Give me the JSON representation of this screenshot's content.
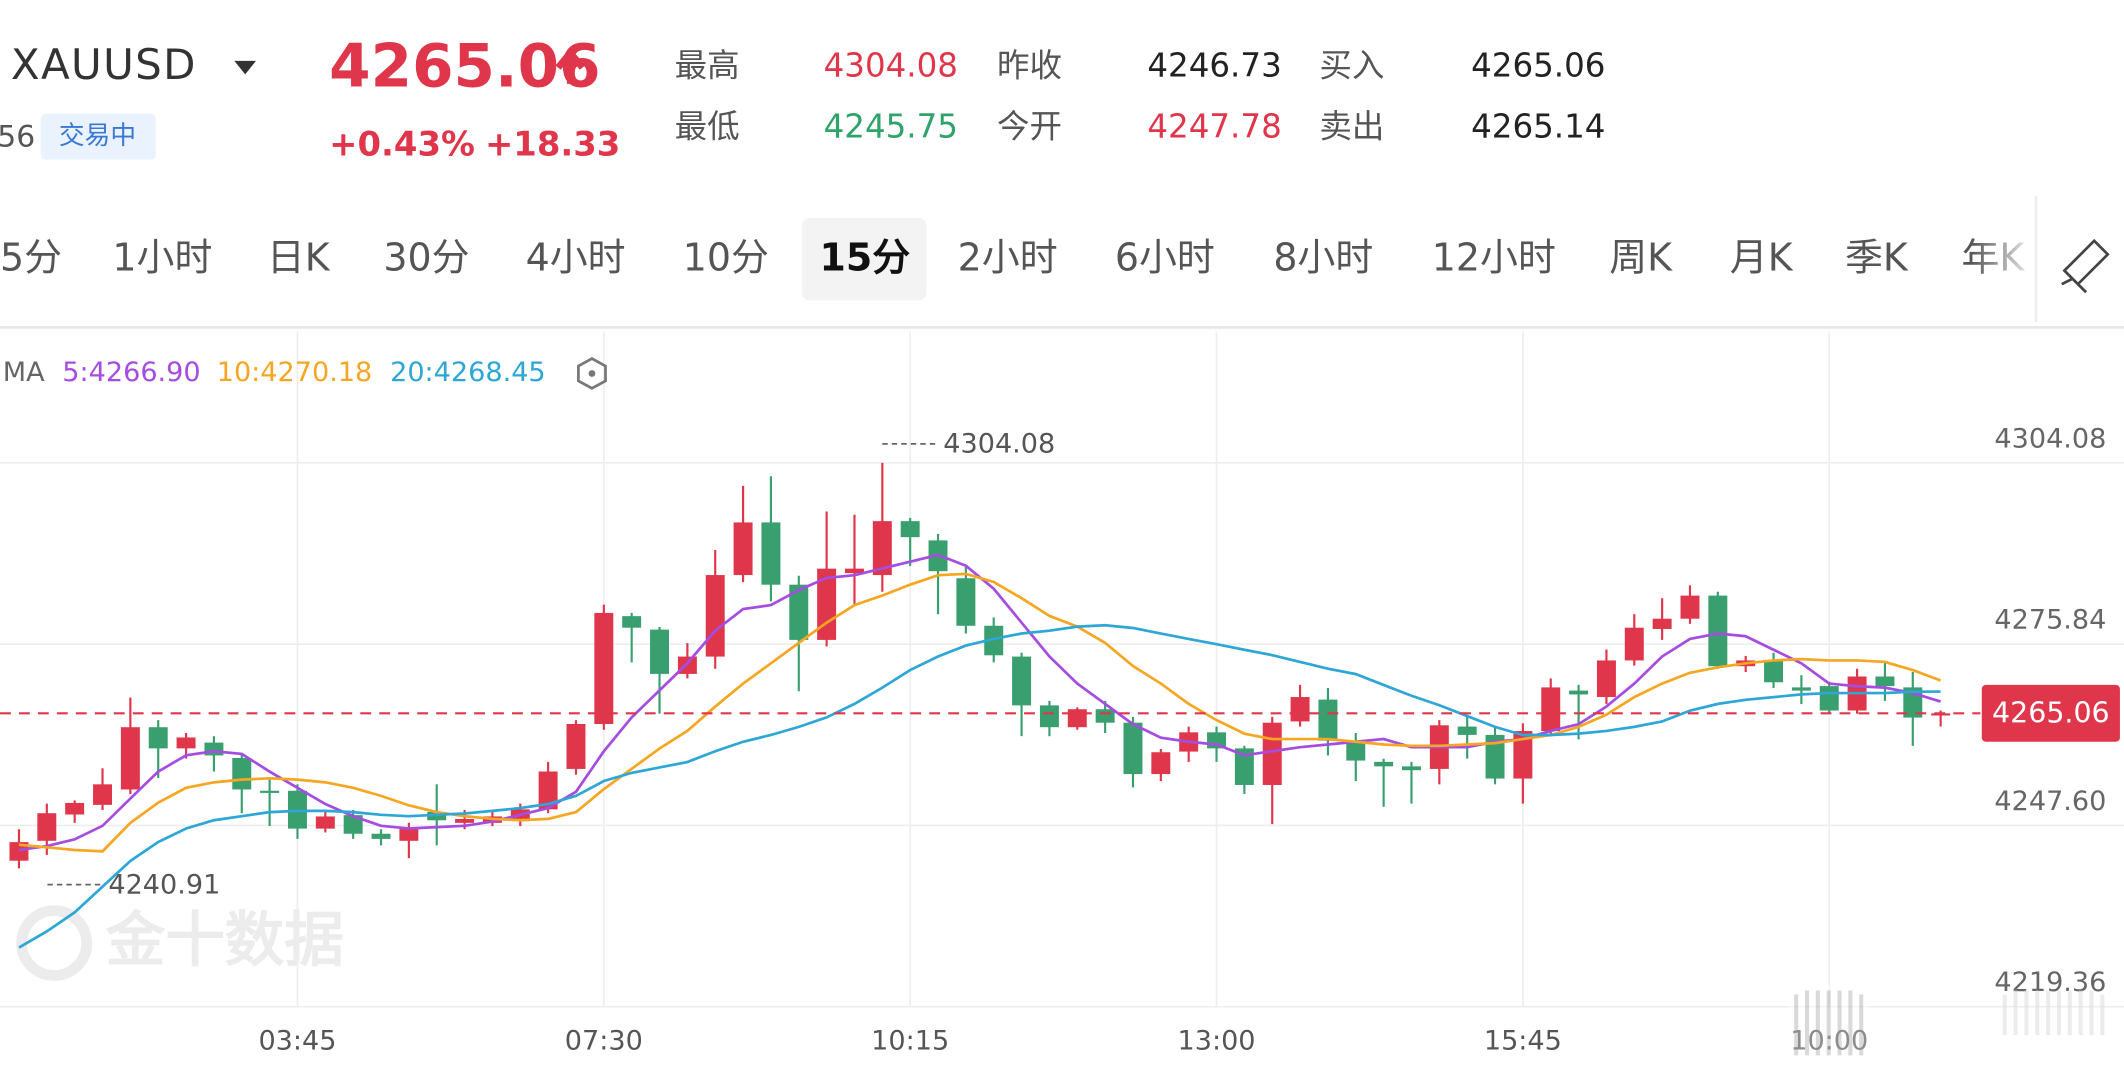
{
  "header": {
    "symbol": "XAUUSD",
    "time_fragment": "56",
    "status": "交易中",
    "price": "4265.06",
    "change_pct": "+0.43%",
    "change": "+18.33",
    "stats": [
      {
        "label": "最高",
        "value": "4304.08",
        "color": "#e0364b"
      },
      {
        "label": "最低",
        "value": "4245.75",
        "color": "#2fa36b"
      },
      {
        "label": "昨收",
        "value": "4246.73",
        "color": "#222222"
      },
      {
        "label": "今开",
        "value": "4247.78",
        "color": "#e0364b"
      },
      {
        "label": "买入",
        "value": "4265.06",
        "color": "#222222"
      },
      {
        "label": "卖出",
        "value": "4265.14",
        "color": "#222222"
      }
    ]
  },
  "tabs": [
    {
      "label": "5分",
      "active": false
    },
    {
      "label": "1小时",
      "active": false
    },
    {
      "label": "日K",
      "active": false
    },
    {
      "label": "30分",
      "active": false
    },
    {
      "label": "4小时",
      "active": false
    },
    {
      "label": "10分",
      "active": false
    },
    {
      "label": "15分",
      "active": true
    },
    {
      "label": "2小时",
      "active": false
    },
    {
      "label": "6小时",
      "active": false
    },
    {
      "label": "8小时",
      "active": false
    },
    {
      "label": "12小时",
      "active": false
    },
    {
      "label": "周K",
      "active": false
    },
    {
      "label": "月K",
      "active": false
    },
    {
      "label": "季K",
      "active": false
    },
    {
      "label": "年K",
      "active": false
    }
  ],
  "watermark": "金十数据",
  "chart_data": {
    "type": "candlestick",
    "ma_label": "MA",
    "up_color": "#e0364b",
    "down_color": "#3a9f6e",
    "grid": true,
    "ylim": [
      4219.36,
      4324.54
    ],
    "yticks": [
      4219.36,
      {
        "value": 4247.6,
        "label": "4247.60"
      },
      4275.84,
      4304.08
    ],
    "current_price": 4265.06,
    "max_label": 4304.08,
    "min_label": 4240.91,
    "categories": [
      null,
      null,
      null,
      null,
      null,
      null,
      null,
      null,
      null,
      null,
      "03:45",
      null,
      null,
      null,
      null,
      null,
      null,
      null,
      null,
      null,
      null,
      "07:30",
      null,
      null,
      null,
      null,
      null,
      null,
      null,
      null,
      null,
      null,
      "10:15",
      null,
      null,
      null,
      null,
      null,
      null,
      null,
      null,
      null,
      null,
      "13:00",
      null,
      null,
      null,
      null,
      null,
      null,
      null,
      null,
      null,
      null,
      "15:45",
      null,
      null,
      null,
      null,
      null,
      null,
      null,
      null,
      null,
      null,
      "10:00",
      null,
      null,
      null,
      null
    ],
    "open": [
      4242.1,
      4245.2,
      4249.3,
      4250.8,
      4253.2,
      4262.9,
      4259.6,
      4260.5,
      4258.1,
      4253.0,
      4253.0,
      4247.1,
      4249.2,
      4246.3,
      4245.2,
      4249.7,
      4248.0,
      4248.0,
      4248.4,
      4250.1,
      4256.4,
      4263.4,
      4280.2,
      4278.1,
      4271.2,
      4273.9,
      4286.6,
      4294.8,
      4285.1,
      4276.5,
      4286.9,
      4286.6,
      4295.0,
      4292.0,
      4286.1,
      4278.7,
      4273.9,
      4266.3,
      4262.9,
      4265.7,
      4263.6,
      4255.6,
      4259.1,
      4262.1,
      4259.6,
      4253.9,
      4263.8,
      4267.2,
      4260.8,
      4257.5,
      4256.8,
      4256.4,
      4263.0,
      4261.7,
      4254.9,
      4262.3,
      4268.6,
      4267.6,
      4273.3,
      4278.2,
      4279.8,
      4283.4,
      4272.4,
      4273.3,
      4269.1,
      4269.3,
      4265.5,
      4270.8,
      4269.1,
      4264.8
    ],
    "high": [
      4247.0,
      4251.0,
      4251.5,
      4256.5,
      4267.5,
      4264.0,
      4262.0,
      4261.5,
      4258.8,
      4255.0,
      4254.0,
      4249.8,
      4250.0,
      4247.0,
      4248.0,
      4254.0,
      4250.0,
      4250.0,
      4251.0,
      4257.5,
      4264.0,
      4282.0,
      4280.7,
      4278.5,
      4276.0,
      4290.5,
      4300.5,
      4302.0,
      4286.5,
      4296.5,
      4296.0,
      4304.08,
      4295.5,
      4293.0,
      4288.0,
      4280.0,
      4274.5,
      4267.0,
      4266.0,
      4267.0,
      4264.5,
      4259.5,
      4263.0,
      4263.0,
      4260.0,
      4264.5,
      4269.5,
      4269.0,
      4262.0,
      4258.0,
      4257.5,
      4264.0,
      4264.5,
      4263.0,
      4263.5,
      4270.5,
      4269.5,
      4275.0,
      4280.5,
      4283.0,
      4285.0,
      4284.0,
      4274.0,
      4274.5,
      4271.0,
      4270.0,
      4272.0,
      4273.0,
      4271.5,
      4265.5
    ],
    "low": [
      4240.91,
      4243.0,
      4248.0,
      4250.0,
      4252.5,
      4255.0,
      4258.0,
      4256.0,
      4249.5,
      4247.5,
      4245.5,
      4246.5,
      4245.5,
      4244.5,
      4242.5,
      4244.5,
      4247.0,
      4247.5,
      4247.5,
      4249.5,
      4255.5,
      4262.5,
      4273.0,
      4265.0,
      4270.5,
      4272.0,
      4285.5,
      4282.5,
      4268.5,
      4275.5,
      4282.0,
      4284.0,
      4288.0,
      4280.5,
      4277.5,
      4273.0,
      4261.5,
      4261.5,
      4262.5,
      4262.0,
      4253.5,
      4254.5,
      4257.5,
      4257.5,
      4252.5,
      4247.8,
      4263.0,
      4258.5,
      4254.5,
      4250.5,
      4251.0,
      4254.0,
      4258.0,
      4254.0,
      4251.0,
      4261.5,
      4261.0,
      4266.5,
      4272.5,
      4276.5,
      4279.0,
      4272.0,
      4271.5,
      4269.0,
      4266.5,
      4265.0,
      4265.0,
      4267.0,
      4260.0,
      4263.0
    ],
    "close": [
      4245.0,
      4249.5,
      4251.1,
      4254.0,
      4262.9,
      4259.6,
      4261.3,
      4258.5,
      4253.2,
      4252.8,
      4247.1,
      4249.0,
      4246.3,
      4245.5,
      4247.1,
      4248.4,
      4248.6,
      4249.0,
      4250.1,
      4256.0,
      4263.4,
      4280.7,
      4278.4,
      4271.2,
      4273.9,
      4286.6,
      4294.8,
      4285.1,
      4276.5,
      4287.6,
      4287.6,
      4295.0,
      4292.5,
      4287.2,
      4278.7,
      4274.1,
      4266.3,
      4262.9,
      4265.7,
      4263.6,
      4255.6,
      4259.0,
      4262.1,
      4259.6,
      4253.9,
      4263.6,
      4267.6,
      4260.8,
      4257.7,
      4256.8,
      4256.2,
      4263.2,
      4261.7,
      4254.9,
      4262.3,
      4269.1,
      4268.0,
      4273.3,
      4278.4,
      4279.8,
      4283.4,
      4272.4,
      4273.3,
      4269.9,
      4268.6,
      4265.5,
      4270.8,
      4269.3,
      4264.4,
      4265.06
    ],
    "ma_series": [
      {
        "name": "5:4266.90",
        "color": "#a54de0",
        "values": [
          4243.76,
          4244.39,
          4245.44,
          4247.55,
          4251.77,
          4255.99,
          4258.52,
          4259.15,
          4258.73,
          4255.99,
          4253.46,
          4250.93,
          4249.03,
          4247.55,
          4247.13,
          4247.34,
          4247.55,
          4248.19,
          4249.24,
          4250.3,
          4252.83,
          4259.15,
          4264.43,
          4268.65,
          4272.86,
          4277.93,
          4281.3,
          4281.93,
          4284.25,
          4286.15,
          4286.57,
          4287.63,
          4288.68,
          4289.74,
          4288.05,
          4284.46,
          4279.19,
          4273.92,
          4269.7,
          4266.54,
          4263.37,
          4261.26,
          4260.63,
          4260.21,
          4258.52,
          4259.15,
          4259.79,
          4260.21,
          4260.63,
          4261.05,
          4259.79,
          4259.79,
          4259.79,
          4260.63,
          4261.05,
          4262.32,
          4263.37,
          4266.11,
          4269.7,
          4273.92,
          4276.66,
          4277.5,
          4277.08,
          4274.97,
          4272.86,
          4269.7,
          4269.28,
          4269.07,
          4268.22,
          4266.9
        ]
      },
      {
        "name": "10:4270.18",
        "color": "#f5a623",
        "values": [
          4244.6,
          4244.18,
          4243.76,
          4243.55,
          4247.98,
          4251.14,
          4253.46,
          4254.3,
          4254.73,
          4254.94,
          4254.73,
          4254.3,
          4253.46,
          4252.2,
          4250.72,
          4249.66,
          4249.03,
          4248.61,
          4248.4,
          4248.61,
          4249.66,
          4253.25,
          4256.41,
          4259.58,
          4262.32,
          4266.11,
          4269.7,
          4272.86,
          4276.03,
          4279.19,
          4281.93,
          4283.41,
          4285.1,
          4286.57,
          4286.78,
          4285.52,
          4282.99,
          4280.24,
          4278.56,
          4276.03,
          4272.44,
          4269.7,
          4266.54,
          4264.01,
          4261.9,
          4261.05,
          4261.05,
          4261.05,
          4260.63,
          4260.21,
          4260.0,
          4260.0,
          4260.21,
          4260.42,
          4261.05,
          4261.69,
          4262.95,
          4264.85,
          4267.59,
          4269.7,
          4271.39,
          4272.23,
          4272.86,
          4273.29,
          4273.5,
          4273.29,
          4273.29,
          4273.07,
          4271.81,
          4270.18
        ]
      },
      {
        "name": "20:4268.45",
        "color": "#2ea6d6",
        "values": [
          4228.57,
          4231.1,
          4234.06,
          4238.06,
          4242.07,
          4245.02,
          4247.13,
          4248.4,
          4249.03,
          4249.66,
          4249.87,
          4249.87,
          4249.66,
          4249.24,
          4249.03,
          4249.24,
          4249.45,
          4249.87,
          4250.3,
          4250.93,
          4252.2,
          4254.51,
          4255.78,
          4256.62,
          4257.47,
          4259.15,
          4260.63,
          4261.69,
          4262.95,
          4264.43,
          4266.54,
          4269.07,
          4271.81,
          4273.92,
          4275.61,
          4276.66,
          4277.5,
          4277.93,
          4278.56,
          4278.77,
          4278.35,
          4277.5,
          4276.66,
          4275.82,
          4274.97,
          4274.13,
          4273.07,
          4272.02,
          4271.18,
          4269.49,
          4267.8,
          4266.33,
          4264.64,
          4262.95,
          4261.69,
          4261.69,
          4261.9,
          4262.32,
          4262.95,
          4263.79,
          4265.48,
          4266.54,
          4267.17,
          4267.59,
          4268.01,
          4268.22,
          4268.22,
          4268.22,
          4268.43,
          4268.45
        ]
      }
    ]
  }
}
